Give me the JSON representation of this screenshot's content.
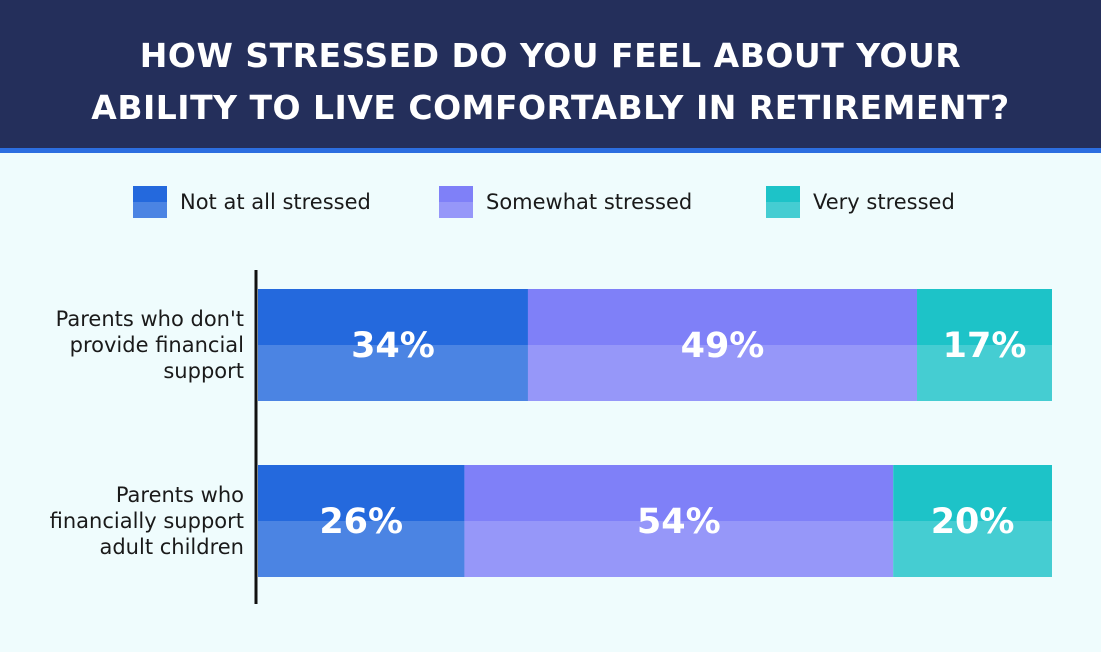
{
  "chart_data": {
    "type": "stacked-bar-horizontal",
    "title": "HOW STRESSED DO YOU FEEL ABOUT YOUR ABILITY TO LIVE COMFORTABLY IN RETIREMENT?",
    "categories": [
      "Parents who don't provide financial support",
      "Parents who financially support adult children"
    ],
    "series": [
      {
        "name": "Not at all stressed",
        "color": "#2469dd",
        "values": [
          34,
          26
        ],
        "value_labels": [
          "34%",
          "26%"
        ]
      },
      {
        "name": "Somewhat stressed",
        "color": "#7f80f8",
        "values": [
          49,
          54
        ],
        "value_labels": [
          "49%",
          "54%"
        ]
      },
      {
        "name": "Very stressed",
        "color": "#1dc3c8",
        "values": [
          17,
          20
        ],
        "value_labels": [
          "17%",
          "20%"
        ]
      }
    ],
    "legend": "top"
  }
}
